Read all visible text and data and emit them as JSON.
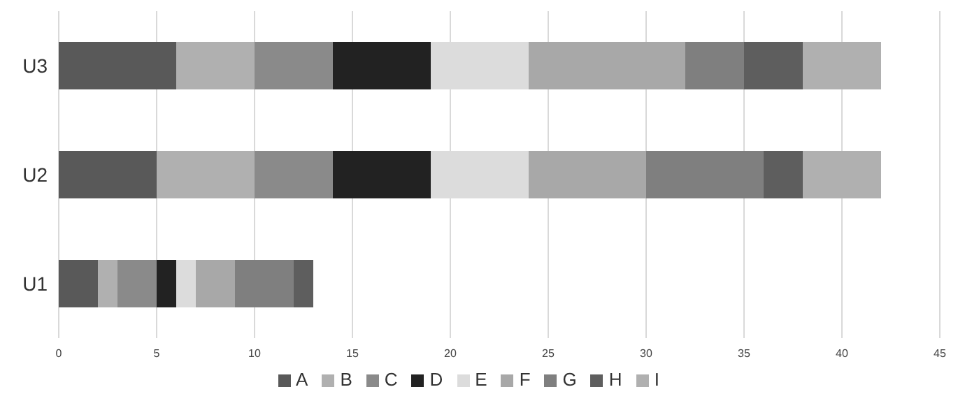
{
  "chart_data": {
    "type": "bar",
    "orientation": "horizontal",
    "stacked": true,
    "categories": [
      "U3",
      "U2",
      "U1"
    ],
    "series": [
      {
        "name": "A",
        "color": "#595959",
        "values": [
          6,
          5,
          2
        ]
      },
      {
        "name": "B",
        "color": "#b0b0b0",
        "values": [
          4,
          5,
          1
        ]
      },
      {
        "name": "C",
        "color": "#8a8a8a",
        "values": [
          4,
          4,
          2
        ]
      },
      {
        "name": "D",
        "color": "#222222",
        "values": [
          5,
          5,
          1
        ]
      },
      {
        "name": "E",
        "color": "#dcdcdc",
        "values": [
          5,
          5,
          1
        ]
      },
      {
        "name": "F",
        "color": "#a8a8a8",
        "values": [
          8,
          6,
          2
        ]
      },
      {
        "name": "G",
        "color": "#7f7f7f",
        "values": [
          3,
          6,
          3
        ]
      },
      {
        "name": "H",
        "color": "#5e5e5e",
        "values": [
          3,
          2,
          1
        ]
      },
      {
        "name": "I",
        "color": "#b0b0b0",
        "values": [
          4,
          4,
          0
        ]
      }
    ],
    "xlim": [
      0,
      45
    ],
    "xticks": [
      0,
      5,
      10,
      15,
      20,
      25,
      30,
      35,
      40,
      45
    ],
    "grid": "x",
    "legend": "bottom"
  }
}
